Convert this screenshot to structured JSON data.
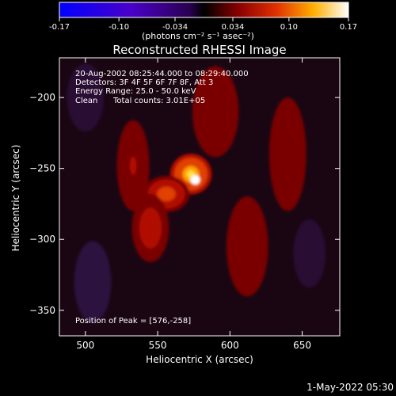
{
  "colorbar": {
    "ticks": [
      "-0.17",
      "-0.10",
      "-0.034",
      "0.034",
      "0.10",
      "0.17"
    ],
    "tick_values": [
      -0.17,
      -0.1,
      -0.034,
      0.034,
      0.1,
      0.17
    ],
    "range": [
      -0.17,
      0.17
    ],
    "units_label": "(photons cm⁻² s⁻¹ asec⁻²)"
  },
  "title": "Reconstructed RHESSI Image",
  "info": {
    "line1": "20-Aug-2002 08:25:44.000 to 08:29:40.000",
    "line2": "Detectors: 3F 4F 5F 6F 7F 8F, Att 3",
    "line3": "Energy Range: 25.0 - 50.0 keV",
    "method": "Clean",
    "counts": "Total counts: 3.01E+05"
  },
  "peak_text": "Position of Peak = [576,-258]",
  "timestamp": "1-May-2022 05:30",
  "colors": {
    "background": "#000000",
    "text": "#ffffff"
  },
  "chart_data": {
    "type": "heatmap",
    "title": "Reconstructed RHESSI Image",
    "xlabel": "Heliocentric X (arcsec)",
    "ylabel": "Heliocentric Y (arcsec)",
    "xlim": [
      482,
      676
    ],
    "ylim": [
      -368,
      -172
    ],
    "x_ticks": [
      500,
      550,
      600,
      650
    ],
    "y_ticks": [
      -200,
      -250,
      -300,
      -350
    ],
    "colormap": "hot-with-blue-negative",
    "zlim": [
      -0.17,
      0.17
    ],
    "peak": {
      "x": 576,
      "y": -258,
      "value": 0.17
    },
    "sources": [
      {
        "x": 573,
        "y": -254,
        "sx": 9,
        "sy": 9,
        "amp": 0.13
      },
      {
        "x": 556,
        "y": -268,
        "sx": 10,
        "sy": 8,
        "amp": 0.07
      },
      {
        "x": 545,
        "y": -292,
        "sx": 8,
        "sy": 15,
        "amp": 0.045
      },
      {
        "x": 533,
        "y": -248,
        "sx": 7,
        "sy": 20,
        "amp": 0.03
      },
      {
        "x": 590,
        "y": -210,
        "sx": 10,
        "sy": 20,
        "amp": 0.025
      },
      {
        "x": 612,
        "y": -305,
        "sx": 9,
        "sy": 22,
        "amp": 0.025
      },
      {
        "x": 640,
        "y": -240,
        "sx": 8,
        "sy": 25,
        "amp": 0.02
      },
      {
        "x": 505,
        "y": -330,
        "sx": 8,
        "sy": 18,
        "amp": -0.02
      },
      {
        "x": 655,
        "y": -310,
        "sx": 7,
        "sy": 15,
        "amp": -0.015
      },
      {
        "x": 500,
        "y": -200,
        "sx": 8,
        "sy": 15,
        "amp": -0.015
      }
    ]
  }
}
